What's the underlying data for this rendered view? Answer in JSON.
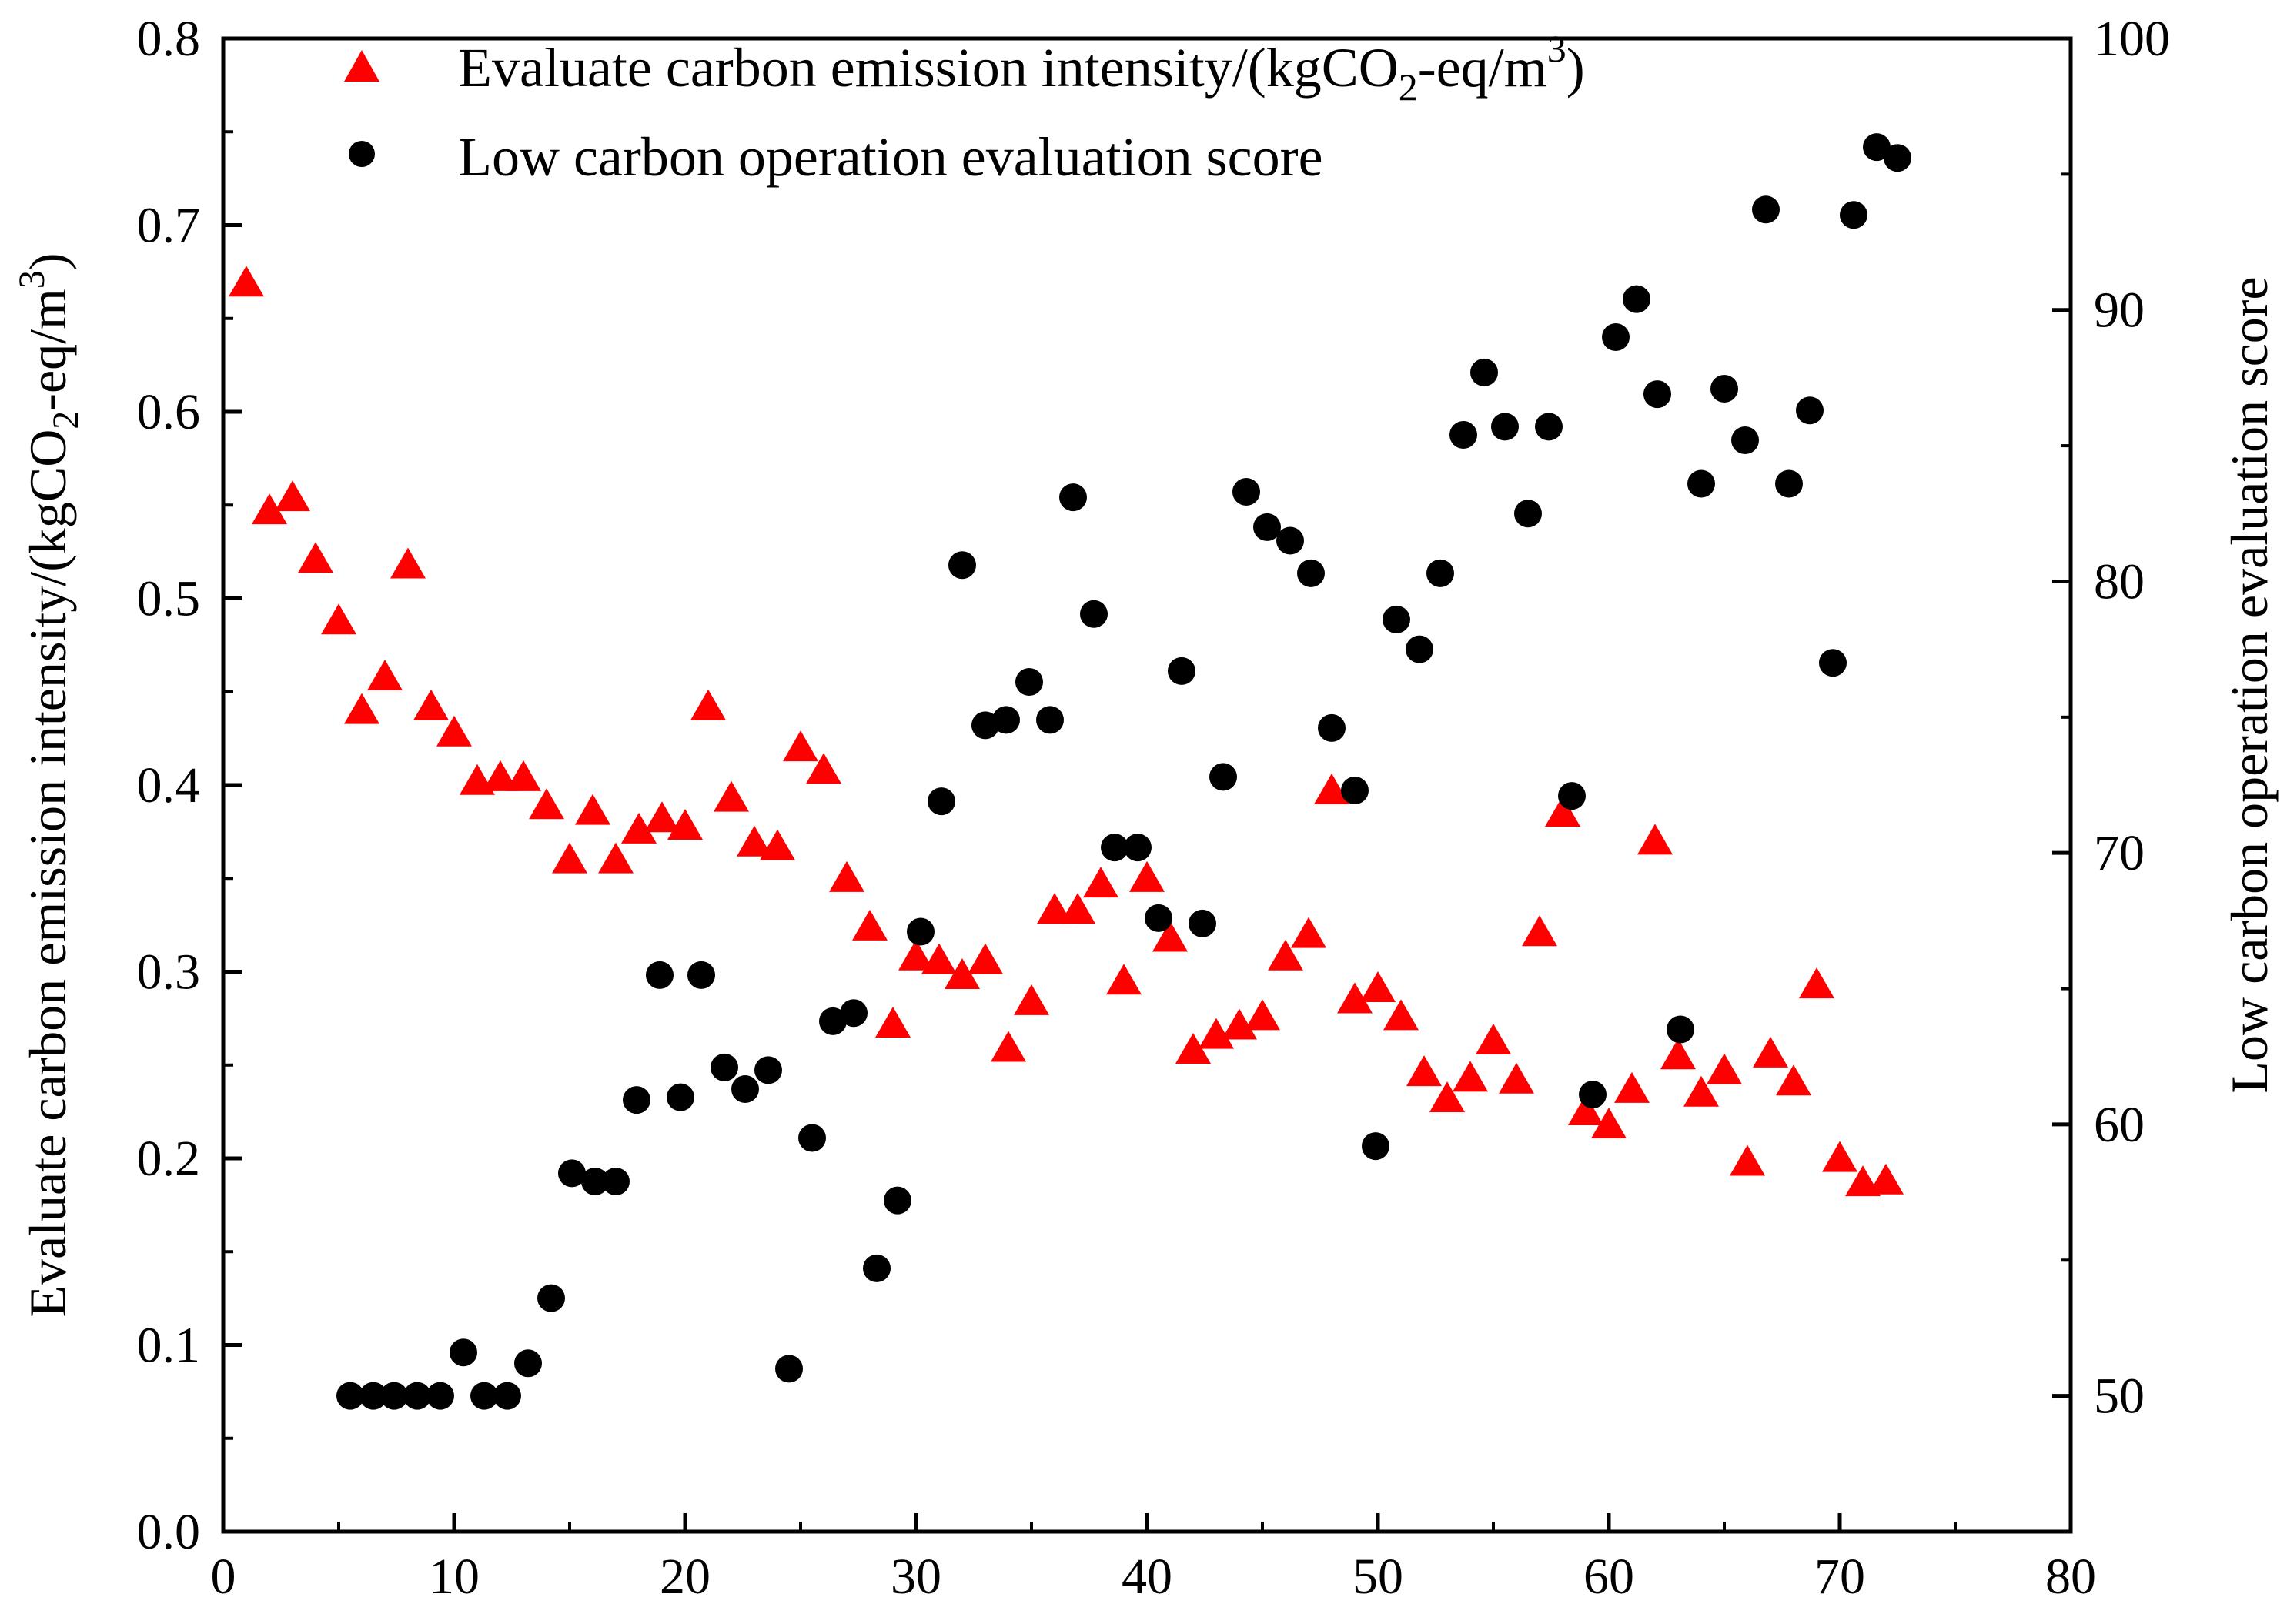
{
  "chart_data": {
    "type": "scatter",
    "xlim": [
      0,
      80
    ],
    "xticks": [
      0,
      10,
      20,
      30,
      40,
      50,
      60,
      70,
      80
    ],
    "xlabel": "",
    "y_left": {
      "label_main": "Evaluate carbon emission intensity/(kgCO",
      "label_sub": "2",
      "label_mid": "-eq/m",
      "label_sup": "3",
      "label_end": ")",
      "lim": [
        0.0,
        0.8
      ],
      "ticks": [
        "0.0",
        "0.1",
        "0.2",
        "0.3",
        "0.4",
        "0.5",
        "0.6",
        "0.7",
        "0.8"
      ]
    },
    "y_right": {
      "label": "Low carbon operation evaluation score",
      "lim": [
        45,
        100
      ],
      "ticks": [
        "50",
        "60",
        "70",
        "80",
        "90",
        "100"
      ]
    },
    "legend": {
      "position": "top-left",
      "series1_main": "Evaluate carbon emission intensity/(kgCO",
      "series1_sub": "2",
      "series1_mid": "-eq/m",
      "series1_sup": "3",
      "series1_end": ")",
      "series2": "Low carbon operation evaluation score"
    },
    "series": [
      {
        "name": "Evaluate carbon emission intensity/(kgCO2-eq/m3)",
        "marker": "triangle",
        "color": "#ff0000",
        "axis": "left",
        "points": [
          [
            1,
            0.668
          ],
          [
            2,
            0.546
          ],
          [
            3,
            0.553
          ],
          [
            4,
            0.52
          ],
          [
            5,
            0.487
          ],
          [
            6,
            0.439
          ],
          [
            7,
            0.457
          ],
          [
            8,
            0.517
          ],
          [
            9,
            0.441
          ],
          [
            10,
            0.427
          ],
          [
            11,
            0.401
          ],
          [
            12,
            0.403
          ],
          [
            13,
            0.403
          ],
          [
            14,
            0.388
          ],
          [
            15,
            0.359
          ],
          [
            16,
            0.385
          ],
          [
            17,
            0.359
          ],
          [
            18,
            0.375
          ],
          [
            19,
            0.381
          ],
          [
            20,
            0.377
          ],
          [
            21,
            0.441
          ],
          [
            22,
            0.392
          ],
          [
            23,
            0.368
          ],
          [
            24,
            0.366
          ],
          [
            25,
            0.419
          ],
          [
            26,
            0.407
          ],
          [
            27,
            0.349
          ],
          [
            28,
            0.323
          ],
          [
            29,
            0.271
          ],
          [
            30,
            0.307
          ],
          [
            31,
            0.305
          ],
          [
            32,
            0.297
          ],
          [
            33,
            0.305
          ],
          [
            34,
            0.258
          ],
          [
            35,
            0.283
          ],
          [
            36,
            0.332
          ],
          [
            37,
            0.332
          ],
          [
            38,
            0.346
          ],
          [
            39,
            0.294
          ],
          [
            40,
            0.349
          ],
          [
            41,
            0.317
          ],
          [
            42,
            0.257
          ],
          [
            43,
            0.265
          ],
          [
            44,
            0.27
          ],
          [
            45,
            0.275
          ],
          [
            46,
            0.307
          ],
          [
            47,
            0.319
          ],
          [
            48,
            0.396
          ],
          [
            49,
            0.284
          ],
          [
            50,
            0.29
          ],
          [
            51,
            0.275
          ],
          [
            52,
            0.245
          ],
          [
            53,
            0.231
          ],
          [
            54,
            0.242
          ],
          [
            55,
            0.262
          ],
          [
            56,
            0.241
          ],
          [
            57,
            0.32
          ],
          [
            58,
            0.384
          ],
          [
            59,
            0.224
          ],
          [
            60,
            0.217
          ],
          [
            61,
            0.236
          ],
          [
            62,
            0.369
          ],
          [
            63,
            0.254
          ],
          [
            64,
            0.234
          ],
          [
            65,
            0.246
          ],
          [
            66,
            0.197
          ],
          [
            67,
            0.255
          ],
          [
            68,
            0.24
          ],
          [
            69,
            0.292
          ],
          [
            70,
            0.199
          ],
          [
            71,
            0.186
          ],
          [
            72,
            0.187
          ]
        ]
      },
      {
        "name": "Low carbon operation evaluation score",
        "marker": "circle",
        "color": "#000000",
        "axis": "right",
        "points": [
          [
            5.5,
            50.0
          ],
          [
            6.5,
            50.0
          ],
          [
            7.4,
            50.0
          ],
          [
            8.4,
            50.0
          ],
          [
            9.4,
            50.0
          ],
          [
            10.4,
            51.6
          ],
          [
            11.3,
            50.0
          ],
          [
            12.3,
            50.0
          ],
          [
            13.2,
            51.2
          ],
          [
            14.2,
            53.6
          ],
          [
            15.1,
            58.2
          ],
          [
            16.1,
            57.9
          ],
          [
            17.0,
            57.9
          ],
          [
            17.9,
            60.9
          ],
          [
            18.9,
            65.5
          ],
          [
            19.8,
            61.0
          ],
          [
            20.7,
            65.5
          ],
          [
            21.7,
            62.1
          ],
          [
            22.6,
            61.3
          ],
          [
            23.6,
            62.0
          ],
          [
            24.5,
            51.0
          ],
          [
            25.5,
            59.5
          ],
          [
            26.4,
            63.8
          ],
          [
            27.3,
            64.1
          ],
          [
            28.3,
            54.7
          ],
          [
            29.2,
            57.2
          ],
          [
            30.2,
            67.1
          ],
          [
            31.1,
            71.9
          ],
          [
            32.0,
            80.6
          ],
          [
            33.0,
            74.7
          ],
          [
            33.9,
            74.9
          ],
          [
            34.9,
            76.3
          ],
          [
            35.8,
            74.9
          ],
          [
            36.8,
            83.1
          ],
          [
            37.7,
            78.8
          ],
          [
            38.6,
            70.2
          ],
          [
            39.6,
            70.2
          ],
          [
            40.5,
            67.6
          ],
          [
            41.5,
            76.7
          ],
          [
            42.4,
            67.4
          ],
          [
            43.3,
            72.8
          ],
          [
            44.3,
            83.3
          ],
          [
            45.2,
            82.0
          ],
          [
            46.2,
            81.5
          ],
          [
            47.1,
            80.3
          ],
          [
            48.0,
            74.6
          ],
          [
            49.0,
            72.3
          ],
          [
            49.9,
            59.2
          ],
          [
            50.8,
            78.6
          ],
          [
            51.8,
            77.5
          ],
          [
            52.7,
            80.3
          ],
          [
            53.7,
            85.4
          ],
          [
            54.6,
            87.7
          ],
          [
            55.5,
            85.7
          ],
          [
            56.5,
            82.5
          ],
          [
            57.4,
            85.7
          ],
          [
            58.4,
            72.1
          ],
          [
            59.3,
            61.1
          ],
          [
            60.3,
            89.0
          ],
          [
            61.2,
            90.4
          ],
          [
            62.1,
            86.9
          ],
          [
            63.1,
            63.5
          ],
          [
            64.0,
            83.6
          ],
          [
            65.0,
            87.1
          ],
          [
            65.9,
            85.2
          ],
          [
            66.8,
            93.7
          ],
          [
            67.8,
            83.6
          ],
          [
            68.7,
            86.3
          ],
          [
            69.7,
            77.0
          ],
          [
            70.6,
            93.5
          ],
          [
            71.6,
            96.0
          ],
          [
            72.5,
            95.6
          ]
        ]
      }
    ]
  }
}
